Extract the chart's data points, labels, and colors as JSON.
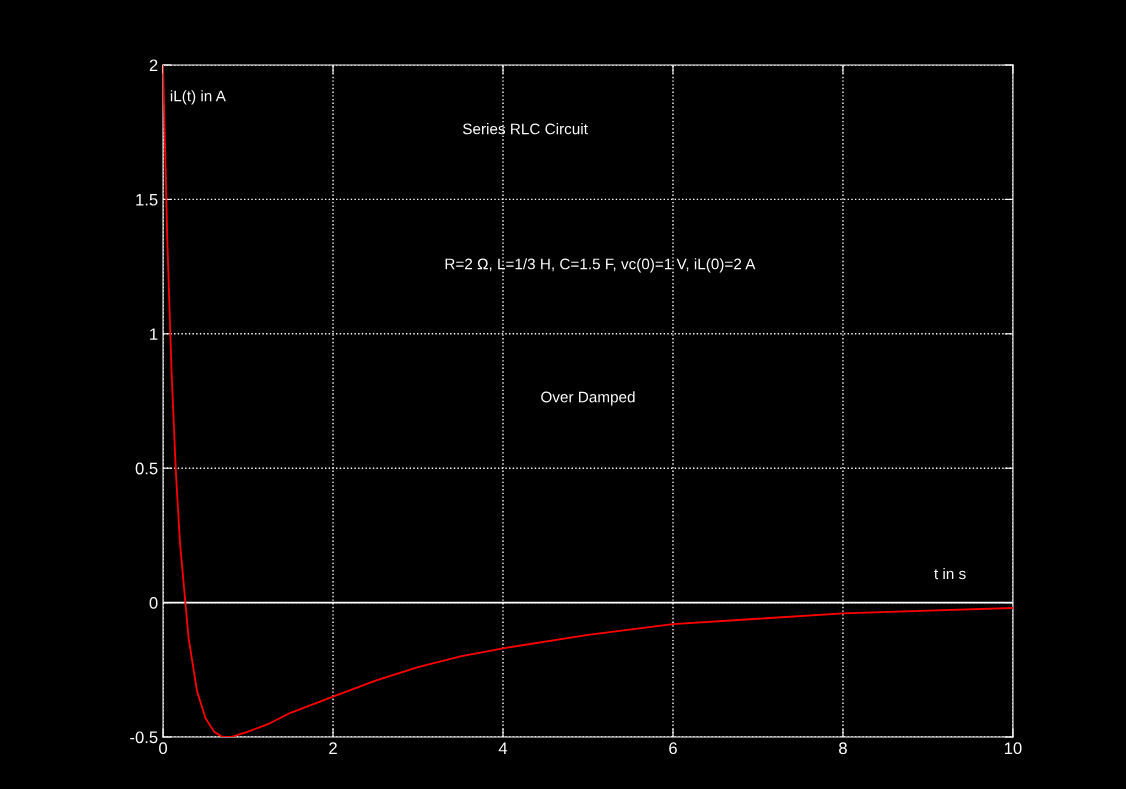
{
  "chart_data": {
    "type": "line",
    "title": "Series RLC Circuit",
    "xlabel": "t in s",
    "ylabel": "iL(t) in A",
    "annotations": [
      "R=2 Ω, L=1/3 H, C=1.5 F, vc(0)=1 V, iL(0)=2 A",
      "Over Damped"
    ],
    "x": [
      0,
      0.05,
      0.1,
      0.15,
      0.2,
      0.3,
      0.4,
      0.5,
      0.6,
      0.7,
      0.8,
      0.9,
      1,
      1.25,
      1.5,
      2,
      2.5,
      3,
      3.5,
      4,
      5,
      6,
      7,
      8,
      9,
      10
    ],
    "series": [
      {
        "color": "#ff0000",
        "values": [
          2,
          1.35,
          0.86,
          0.49,
          0.22,
          -0.13,
          -0.33,
          -0.43,
          -0.48,
          -0.5,
          -0.5,
          -0.49,
          -0.48,
          -0.45,
          -0.41,
          -0.35,
          -0.29,
          -0.24,
          -0.2,
          -0.17,
          -0.12,
          -0.08,
          -0.06,
          -0.04,
          -0.03,
          -0.02
        ]
      }
    ],
    "xlim": [
      0,
      10
    ],
    "xticks": [
      0,
      2,
      4,
      6,
      8,
      10
    ],
    "ylim": [
      -0.5,
      2
    ],
    "yticks": [
      -0.5,
      0,
      0.5,
      1,
      1.5,
      2
    ],
    "ref_lines": [
      {
        "axis": "y",
        "value": 0,
        "color": "#ffffff",
        "line_style": "solid"
      }
    ],
    "grid": true,
    "legend": false,
    "marker": "none",
    "line_style": "solid"
  }
}
